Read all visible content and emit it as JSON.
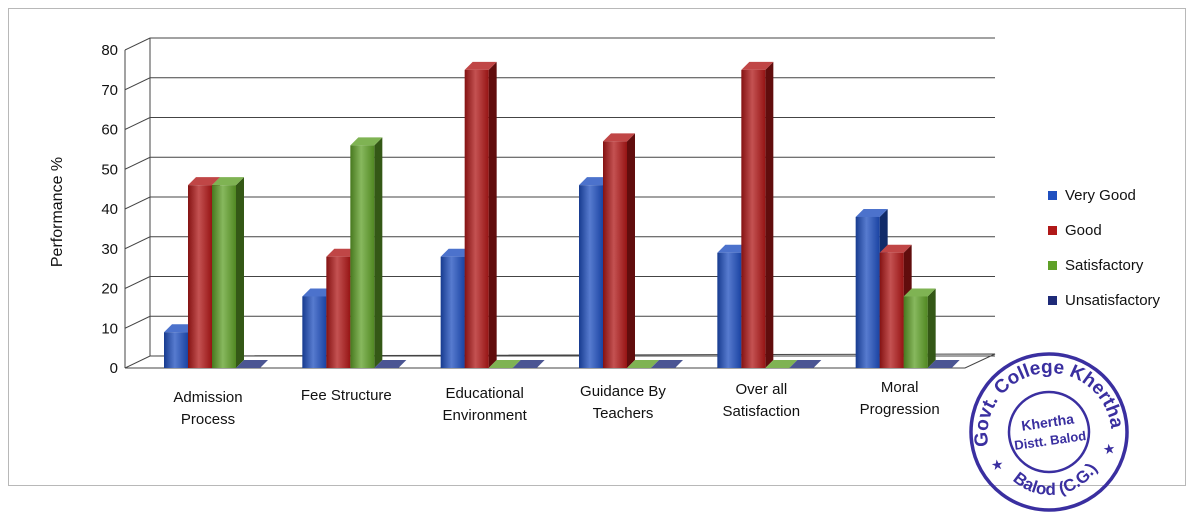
{
  "chart_data": {
    "type": "bar",
    "categories": [
      [
        "Admission",
        "Process"
      ],
      [
        "Fee Structure"
      ],
      [
        "Educational",
        "Environment"
      ],
      [
        "Guidance By",
        "Teachers"
      ],
      [
        "Over all",
        "Satisfaction"
      ],
      [
        "Moral",
        "Progression"
      ]
    ],
    "series": [
      {
        "name": "Very Good",
        "color": "#1f4fbf",
        "values": [
          9,
          18,
          28,
          46,
          29,
          38
        ]
      },
      {
        "name": "Good",
        "color": "#b01818",
        "values": [
          46,
          28,
          75,
          57,
          75,
          29
        ]
      },
      {
        "name": "Satisfactory",
        "color": "#5fa028",
        "values": [
          46,
          56,
          0,
          0,
          0,
          18
        ]
      },
      {
        "name": "Unsatisfactory",
        "color": "#1e2a78",
        "values": [
          0,
          0,
          0,
          0,
          0,
          0
        ]
      }
    ],
    "ylabel": "Performance %",
    "ylim": [
      0,
      80
    ],
    "yticks": [
      0,
      10,
      20,
      30,
      40,
      50,
      60,
      70,
      80
    ],
    "grid": true,
    "legend_position": "right"
  },
  "stamp": {
    "outer_text": "Govt. College Khertha",
    "inner_line1": "Khertha",
    "inner_line2": "Distt. Balod",
    "bottom_text": "Balod (C.G.)",
    "color": "#3a2fa0"
  }
}
